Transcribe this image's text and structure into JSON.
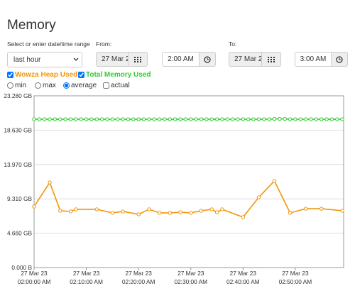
{
  "header": {
    "title": "Memory"
  },
  "range": {
    "label": "Select or enter date/time range",
    "selected": "last hour"
  },
  "from": {
    "label": "From:",
    "date": "27 Mar 2",
    "time": "2:00 AM"
  },
  "to": {
    "label": "To:",
    "date": "27 Mar 2",
    "time": "3:00 AM"
  },
  "modes": [
    "min",
    "max",
    "average",
    "actual"
  ],
  "chart_data": {
    "type": "line",
    "xlim": [
      "2023-03-27T02:00:00",
      "2023-03-27T02:59:15"
    ],
    "xticks": [
      {
        "value": "2023-03-27T02:00:00",
        "label": [
          "27 Mar 23",
          "02:00:00 AM"
        ]
      },
      {
        "value": "2023-03-27T02:10:00",
        "label": [
          "27 Mar 23",
          "02:10:00 AM"
        ]
      },
      {
        "value": "2023-03-27T02:20:00",
        "label": [
          "27 Mar 23",
          "02:20:00 AM"
        ]
      },
      {
        "value": "2023-03-27T02:30:00",
        "label": [
          "27 Mar 23",
          "02:30:00 AM"
        ]
      },
      {
        "value": "2023-03-27T02:40:00",
        "label": [
          "27 Mar 23",
          "02:40:00 AM"
        ]
      },
      {
        "value": "2023-03-27T02:50:00",
        "label": [
          "27 Mar 23",
          "02:50:00 AM"
        ]
      }
    ],
    "ylim": [
      0,
      23.28
    ],
    "yticks": [
      {
        "value": 0,
        "label": "0.000 B"
      },
      {
        "value": 4.66,
        "label": "4.660 GB"
      },
      {
        "value": 9.31,
        "label": "9.310 GB"
      },
      {
        "value": 13.97,
        "label": "13.970 GB"
      },
      {
        "value": 18.63,
        "label": "18.630 GB"
      },
      {
        "value": 23.28,
        "label": "23.280 GB"
      }
    ],
    "grid": true,
    "series": [
      {
        "name": "Wowza Heap Used",
        "color": "#f0960a",
        "x": [
          "2023-03-27T02:00:00",
          "2023-03-27T02:03:00",
          "2023-03-27T02:05:00",
          "2023-03-27T02:07:00",
          "2023-03-27T02:08:00",
          "2023-03-27T02:12:00",
          "2023-03-27T02:15:00",
          "2023-03-27T02:17:00",
          "2023-03-27T02:20:00",
          "2023-03-27T02:22:00",
          "2023-03-27T02:24:00",
          "2023-03-27T02:26:00",
          "2023-03-27T02:28:00",
          "2023-03-27T02:30:00",
          "2023-03-27T02:32:00",
          "2023-03-27T02:34:00",
          "2023-03-27T02:35:00",
          "2023-03-27T02:36:00",
          "2023-03-27T02:40:00",
          "2023-03-27T02:43:00",
          "2023-03-27T02:46:00",
          "2023-03-27T02:49:00",
          "2023-03-27T02:52:00",
          "2023-03-27T02:55:00",
          "2023-03-27T02:59:00"
        ],
        "values": [
          8.27,
          11.54,
          7.7,
          7.6,
          7.89,
          7.89,
          7.41,
          7.6,
          7.22,
          7.89,
          7.41,
          7.41,
          7.5,
          7.41,
          7.7,
          7.89,
          7.5,
          7.89,
          6.83,
          9.52,
          11.74,
          7.41,
          7.98,
          7.98,
          7.7
        ]
      },
      {
        "name": "Total Memory Used",
        "color": "#33cc33",
        "x": [
          "2023-03-27T02:00:00",
          "2023-03-27T02:01:00",
          "2023-03-27T02:02:00",
          "2023-03-27T02:03:00",
          "2023-03-27T02:04:00",
          "2023-03-27T02:05:00",
          "2023-03-27T02:06:00",
          "2023-03-27T02:07:00",
          "2023-03-27T02:08:00",
          "2023-03-27T02:09:00",
          "2023-03-27T02:10:00",
          "2023-03-27T02:11:00",
          "2023-03-27T02:12:00",
          "2023-03-27T02:13:00",
          "2023-03-27T02:14:00",
          "2023-03-27T02:15:00",
          "2023-03-27T02:16:00",
          "2023-03-27T02:17:00",
          "2023-03-27T02:18:00",
          "2023-03-27T02:19:00",
          "2023-03-27T02:20:00",
          "2023-03-27T02:21:00",
          "2023-03-27T02:22:00",
          "2023-03-27T02:23:00",
          "2023-03-27T02:24:00",
          "2023-03-27T02:25:00",
          "2023-03-27T02:26:00",
          "2023-03-27T02:27:00",
          "2023-03-27T02:28:00",
          "2023-03-27T02:29:00",
          "2023-03-27T02:30:00",
          "2023-03-27T02:31:00",
          "2023-03-27T02:32:00",
          "2023-03-27T02:33:00",
          "2023-03-27T02:34:00",
          "2023-03-27T02:35:00",
          "2023-03-27T02:36:00",
          "2023-03-27T02:37:00",
          "2023-03-27T02:38:00",
          "2023-03-27T02:39:00",
          "2023-03-27T02:40:00",
          "2023-03-27T02:41:00",
          "2023-03-27T02:42:00",
          "2023-03-27T02:43:00",
          "2023-03-27T02:44:00",
          "2023-03-27T02:45:00",
          "2023-03-27T02:46:00",
          "2023-03-27T02:47:00",
          "2023-03-27T02:48:00",
          "2023-03-27T02:49:00",
          "2023-03-27T02:50:00",
          "2023-03-27T02:51:00",
          "2023-03-27T02:52:00",
          "2023-03-27T02:53:00",
          "2023-03-27T02:54:00",
          "2023-03-27T02:55:00",
          "2023-03-27T02:56:00",
          "2023-03-27T02:57:00",
          "2023-03-27T02:58:00",
          "2023-03-27T02:59:00"
        ],
        "values": [
          20.1,
          20.1,
          20.1,
          20.1,
          20.1,
          20.1,
          20.1,
          20.1,
          20.1,
          20.1,
          20.1,
          20.1,
          20.1,
          20.1,
          20.1,
          20.1,
          20.1,
          20.1,
          20.1,
          20.1,
          20.1,
          20.1,
          20.1,
          20.1,
          20.1,
          20.1,
          20.1,
          20.1,
          20.1,
          20.1,
          20.1,
          20.1,
          20.1,
          20.1,
          20.1,
          20.1,
          20.1,
          20.1,
          20.1,
          20.1,
          20.1,
          20.1,
          20.1,
          20.1,
          20.1,
          20.1,
          20.15,
          20.15,
          20.15,
          20.1,
          20.1,
          20.1,
          20.1,
          20.1,
          20.1,
          20.1,
          20.1,
          20.1,
          20.1,
          20.1
        ]
      }
    ]
  }
}
